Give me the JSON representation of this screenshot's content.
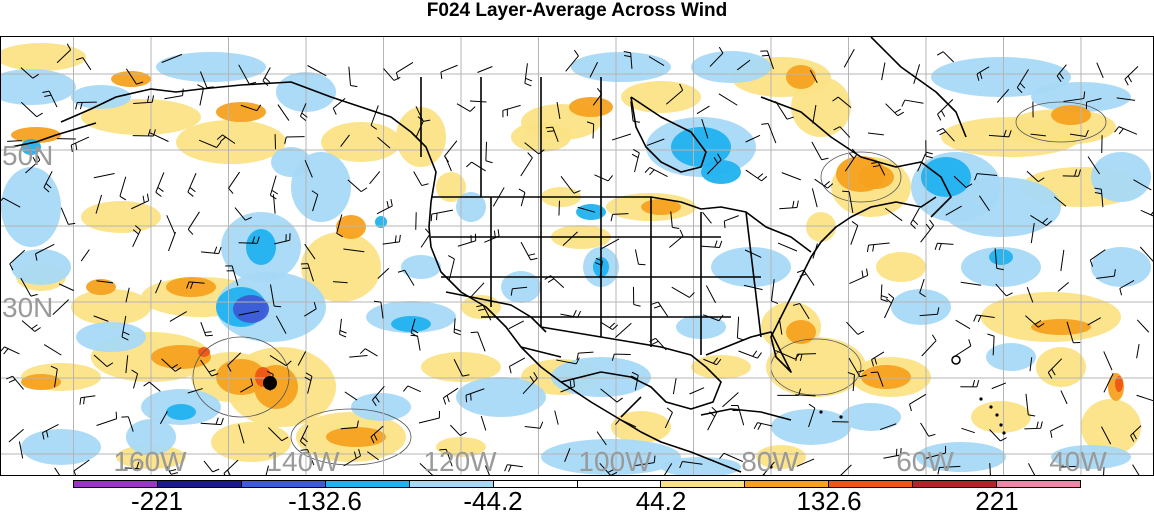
{
  "title": "F024 Layer-Average Across Wind",
  "lat_labels": [
    "50N",
    "30N"
  ],
  "lon_labels": [
    "160W",
    "140W",
    "120W",
    "100W",
    "80W",
    "60W",
    "40W"
  ],
  "colorbar": {
    "colors": [
      "#9b35c6",
      "#1a1a8c",
      "#3d5bd6",
      "#20b2ef",
      "#a7d9f7",
      "#ffffff",
      "#ffffff",
      "#fbe385",
      "#f5a11f",
      "#ee5516",
      "#b3242a",
      "#ee86a9"
    ],
    "tick_labels": [
      "-221",
      "-132.6",
      "-44.2",
      "44.2",
      "132.6",
      "221"
    ]
  },
  "map": {
    "markers": [
      "filled-dot",
      "open-circle"
    ]
  }
}
